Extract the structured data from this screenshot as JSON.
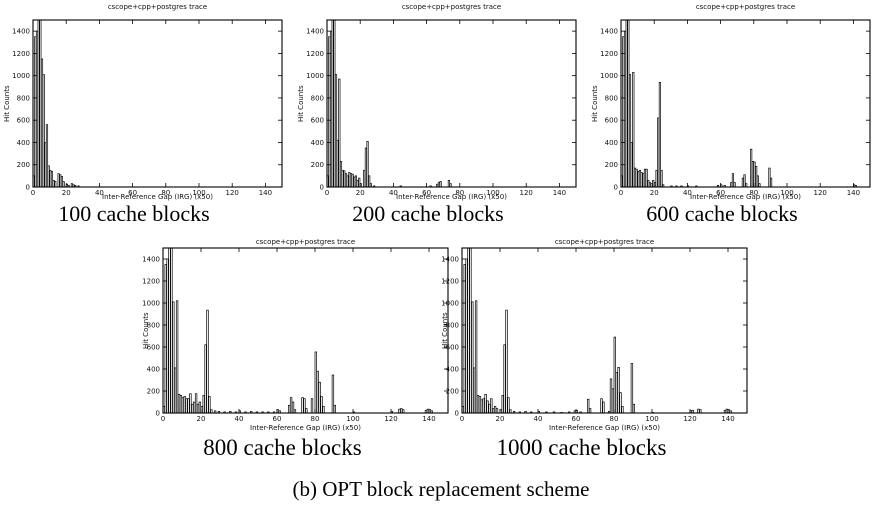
{
  "figure_caption": "(b) OPT block replacement scheme",
  "chart_data": [
    {
      "type": "bar",
      "title": "cscope+cpp+postgres trace",
      "caption": "100 cache blocks",
      "xlabel": "Inter-Reference Gap (IRG) (x50)",
      "ylabel": "Hit Counts",
      "xlim": [
        0,
        150
      ],
      "ylim": [
        0,
        1500
      ],
      "xticks": [
        0,
        20,
        40,
        60,
        80,
        100,
        120,
        140
      ],
      "yticks": [
        0,
        200,
        400,
        600,
        800,
        1000,
        1200,
        1400
      ],
      "grid": false,
      "legend": "none",
      "bars": [
        [
          0,
          100
        ],
        [
          1,
          1350
        ],
        [
          2,
          1400
        ],
        [
          3,
          1500
        ],
        [
          4,
          1500
        ],
        [
          5,
          1150
        ],
        [
          6,
          1010
        ],
        [
          7,
          400
        ],
        [
          8,
          560
        ],
        [
          9,
          190
        ],
        [
          10,
          150
        ],
        [
          11,
          140
        ],
        [
          12,
          60
        ],
        [
          13,
          50
        ],
        [
          15,
          120
        ],
        [
          16,
          110
        ],
        [
          17,
          95
        ],
        [
          18,
          50
        ],
        [
          20,
          25
        ],
        [
          21,
          15
        ],
        [
          23,
          30
        ],
        [
          24,
          20
        ],
        [
          25,
          15
        ],
        [
          27,
          10
        ]
      ]
    },
    {
      "type": "bar",
      "title": "cscope+cpp+postgres trace",
      "caption": "200 cache blocks",
      "xlabel": "Inter-Reference Gap (IRG) (x50)",
      "ylabel": "Hit Counts",
      "xlim": [
        0,
        150
      ],
      "ylim": [
        0,
        1500
      ],
      "xticks": [
        0,
        20,
        40,
        60,
        80,
        100,
        120,
        140
      ],
      "yticks": [
        0,
        200,
        400,
        600,
        800,
        1000,
        1200,
        1400
      ],
      "grid": false,
      "legend": "none",
      "bars": [
        [
          0,
          100
        ],
        [
          1,
          1350
        ],
        [
          2,
          1400
        ],
        [
          3,
          1500
        ],
        [
          4,
          1500
        ],
        [
          5,
          1010
        ],
        [
          6,
          420
        ],
        [
          7,
          970
        ],
        [
          8,
          230
        ],
        [
          9,
          150
        ],
        [
          10,
          145
        ],
        [
          11,
          120
        ],
        [
          12,
          100
        ],
        [
          13,
          130
        ],
        [
          14,
          120
        ],
        [
          15,
          115
        ],
        [
          16,
          90
        ],
        [
          17,
          100
        ],
        [
          18,
          60
        ],
        [
          19,
          80
        ],
        [
          20,
          30
        ],
        [
          22,
          150
        ],
        [
          23,
          350
        ],
        [
          24,
          410
        ],
        [
          25,
          100
        ],
        [
          26,
          30
        ],
        [
          28,
          10
        ],
        [
          44,
          10
        ],
        [
          62,
          10
        ],
        [
          66,
          25
        ],
        [
          67,
          40
        ],
        [
          68,
          50
        ],
        [
          73,
          60
        ],
        [
          74,
          30
        ]
      ]
    },
    {
      "type": "bar",
      "title": "cscope+cpp+postgres trace",
      "caption": "600 cache blocks",
      "xlabel": "Inter-Reference Gap (IRG) (x50)",
      "ylabel": "Hit Counts",
      "xlim": [
        0,
        150
      ],
      "ylim": [
        0,
        1500
      ],
      "xticks": [
        0,
        20,
        40,
        60,
        80,
        100,
        120,
        140
      ],
      "yticks": [
        0,
        200,
        400,
        600,
        800,
        1000,
        1200,
        1400
      ],
      "grid": false,
      "legend": "none",
      "bars": [
        [
          0,
          100
        ],
        [
          1,
          1350
        ],
        [
          2,
          1400
        ],
        [
          3,
          1500
        ],
        [
          4,
          1500
        ],
        [
          5,
          1010
        ],
        [
          6,
          400
        ],
        [
          7,
          1030
        ],
        [
          8,
          170
        ],
        [
          9,
          160
        ],
        [
          10,
          140
        ],
        [
          11,
          150
        ],
        [
          12,
          130
        ],
        [
          13,
          120
        ],
        [
          14,
          160
        ],
        [
          15,
          160
        ],
        [
          16,
          60
        ],
        [
          17,
          40
        ],
        [
          18,
          30
        ],
        [
          19,
          60
        ],
        [
          20,
          40
        ],
        [
          21,
          150
        ],
        [
          22,
          620
        ],
        [
          23,
          940
        ],
        [
          24,
          150
        ],
        [
          25,
          20
        ],
        [
          30,
          10
        ],
        [
          33,
          10
        ],
        [
          36,
          10
        ],
        [
          40,
          10
        ],
        [
          45,
          10
        ],
        [
          58,
          15
        ],
        [
          60,
          20
        ],
        [
          62,
          15
        ],
        [
          66,
          40
        ],
        [
          67,
          120
        ],
        [
          68,
          40
        ],
        [
          73,
          80
        ],
        [
          74,
          110
        ],
        [
          75,
          30
        ],
        [
          78,
          340
        ],
        [
          79,
          230
        ],
        [
          80,
          225
        ],
        [
          81,
          185
        ],
        [
          82,
          100
        ],
        [
          83,
          30
        ],
        [
          89,
          170
        ],
        [
          90,
          80
        ],
        [
          140,
          20
        ],
        [
          141,
          15
        ]
      ]
    },
    {
      "type": "bar",
      "title": "cscope+cpp+postgres trace",
      "caption": "800 cache blocks",
      "xlabel": "Inter-Reference Gap (IRG) (x50)",
      "ylabel": "Hit Counts",
      "xlim": [
        0,
        150
      ],
      "ylim": [
        0,
        1500
      ],
      "xticks": [
        0,
        20,
        40,
        60,
        80,
        100,
        120,
        140
      ],
      "yticks": [
        0,
        200,
        400,
        600,
        800,
        1000,
        1200,
        1400
      ],
      "grid": false,
      "legend": "none",
      "bars": [
        [
          0,
          60
        ],
        [
          1,
          1350
        ],
        [
          2,
          1400
        ],
        [
          3,
          1500
        ],
        [
          4,
          1500
        ],
        [
          5,
          1010
        ],
        [
          6,
          410
        ],
        [
          7,
          1020
        ],
        [
          8,
          170
        ],
        [
          9,
          160
        ],
        [
          10,
          140
        ],
        [
          11,
          150
        ],
        [
          12,
          130
        ],
        [
          13,
          130
        ],
        [
          14,
          175
        ],
        [
          15,
          80
        ],
        [
          16,
          100
        ],
        [
          17,
          175
        ],
        [
          18,
          80
        ],
        [
          19,
          100
        ],
        [
          20,
          60
        ],
        [
          21,
          160
        ],
        [
          22,
          620
        ],
        [
          23,
          935
        ],
        [
          24,
          150
        ],
        [
          25,
          30
        ],
        [
          27,
          20
        ],
        [
          29,
          15
        ],
        [
          32,
          10
        ],
        [
          35,
          15
        ],
        [
          38,
          10
        ],
        [
          40,
          20
        ],
        [
          43,
          10
        ],
        [
          46,
          15
        ],
        [
          49,
          10
        ],
        [
          52,
          10
        ],
        [
          55,
          10
        ],
        [
          58,
          10
        ],
        [
          60,
          30
        ],
        [
          61,
          20
        ],
        [
          66,
          70
        ],
        [
          67,
          140
        ],
        [
          68,
          100
        ],
        [
          69,
          30
        ],
        [
          73,
          140
        ],
        [
          74,
          130
        ],
        [
          75,
          40
        ],
        [
          78,
          130
        ],
        [
          80,
          555
        ],
        [
          81,
          380
        ],
        [
          82,
          280
        ],
        [
          83,
          150
        ],
        [
          84,
          60
        ],
        [
          89,
          345
        ],
        [
          90,
          70
        ],
        [
          100,
          10
        ],
        [
          120,
          15
        ],
        [
          124,
          35
        ],
        [
          125,
          40
        ],
        [
          126,
          30
        ],
        [
          138,
          25
        ],
        [
          139,
          35
        ],
        [
          140,
          30
        ],
        [
          141,
          20
        ]
      ]
    },
    {
      "type": "bar",
      "title": "cscope+cpp+postgres trace",
      "caption": "1000 cache blocks",
      "xlabel": "Inter-Reference Gap (IRG) (x50)",
      "ylabel": "Hit Counts",
      "xlim": [
        0,
        150
      ],
      "ylim": [
        0,
        1500
      ],
      "xticks": [
        0,
        20,
        40,
        60,
        80,
        100,
        120,
        140
      ],
      "yticks": [
        0,
        200,
        400,
        600,
        800,
        1000,
        1200,
        1400
      ],
      "grid": false,
      "legend": "none",
      "bars": [
        [
          0,
          60
        ],
        [
          1,
          1350
        ],
        [
          2,
          1400
        ],
        [
          3,
          1500
        ],
        [
          4,
          1500
        ],
        [
          5,
          1010
        ],
        [
          6,
          410
        ],
        [
          7,
          1020
        ],
        [
          8,
          160
        ],
        [
          9,
          150
        ],
        [
          10,
          120
        ],
        [
          11,
          130
        ],
        [
          12,
          170
        ],
        [
          13,
          110
        ],
        [
          14,
          80
        ],
        [
          15,
          130
        ],
        [
          16,
          40
        ],
        [
          17,
          60
        ],
        [
          18,
          40
        ],
        [
          20,
          30
        ],
        [
          21,
          160
        ],
        [
          22,
          620
        ],
        [
          23,
          935
        ],
        [
          24,
          140
        ],
        [
          25,
          30
        ],
        [
          27,
          15
        ],
        [
          30,
          10
        ],
        [
          33,
          15
        ],
        [
          36,
          10
        ],
        [
          40,
          15
        ],
        [
          44,
          10
        ],
        [
          48,
          10
        ],
        [
          52,
          5
        ],
        [
          56,
          10
        ],
        [
          59,
          20
        ],
        [
          60,
          25
        ],
        [
          62,
          10
        ],
        [
          66,
          125
        ],
        [
          67,
          40
        ],
        [
          73,
          130
        ],
        [
          74,
          100
        ],
        [
          77,
          15
        ],
        [
          78,
          310
        ],
        [
          79,
          220
        ],
        [
          80,
          690
        ],
        [
          81,
          370
        ],
        [
          82,
          415
        ],
        [
          83,
          185
        ],
        [
          84,
          60
        ],
        [
          89,
          450
        ],
        [
          90,
          80
        ],
        [
          100,
          5
        ],
        [
          120,
          20
        ],
        [
          121,
          25
        ],
        [
          124,
          35
        ],
        [
          125,
          30
        ],
        [
          138,
          25
        ],
        [
          139,
          35
        ],
        [
          140,
          30
        ],
        [
          141,
          20
        ]
      ]
    }
  ]
}
